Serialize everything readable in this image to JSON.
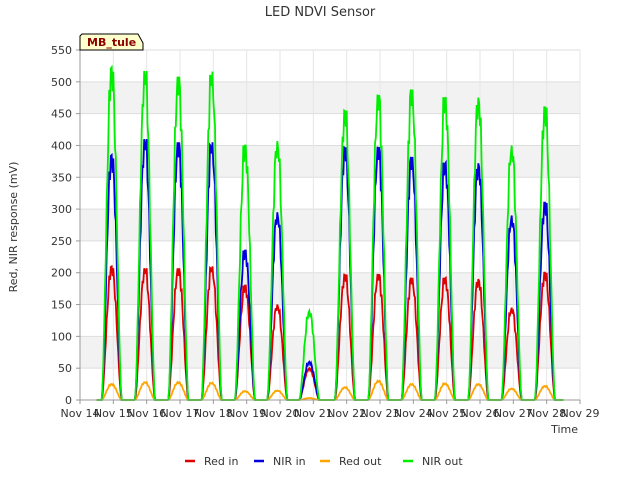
{
  "chart_data": {
    "type": "line",
    "title": "LED NDVI Sensor",
    "xlabel": "Time",
    "ylabel": "Red, NIR response (mV)",
    "badge": "MB_tule",
    "xlim": [
      14,
      29
    ],
    "ylim": [
      0,
      550
    ],
    "x_ticks": [
      {
        "value": 14,
        "label": "Nov 14"
      },
      {
        "value": 15,
        "label": "Nov 15"
      },
      {
        "value": 16,
        "label": "Nov 16"
      },
      {
        "value": 17,
        "label": "Nov 17"
      },
      {
        "value": 18,
        "label": "Nov 18"
      },
      {
        "value": 19,
        "label": "Nov 19"
      },
      {
        "value": 20,
        "label": "Nov 20"
      },
      {
        "value": 21,
        "label": "Nov 21"
      },
      {
        "value": 22,
        "label": "Nov 22"
      },
      {
        "value": 23,
        "label": "Nov 23"
      },
      {
        "value": 24,
        "label": "Nov 24"
      },
      {
        "value": 25,
        "label": "Nov 25"
      },
      {
        "value": 26,
        "label": "Nov 26"
      },
      {
        "value": 27,
        "label": "Nov 27"
      },
      {
        "value": 28,
        "label": "Nov 28"
      },
      {
        "value": 29,
        "label": "Nov 29"
      }
    ],
    "y_ticks": [
      0,
      50,
      100,
      150,
      200,
      250,
      300,
      350,
      400,
      450,
      500,
      550
    ],
    "legend_position": "bottom",
    "grid": true,
    "series": [
      {
        "name": "Red in",
        "color": "#dd0000",
        "peaks": [
          [
            14.95,
            210
          ],
          [
            15.95,
            207
          ],
          [
            16.95,
            207
          ],
          [
            17.95,
            210
          ],
          [
            18.95,
            180
          ],
          [
            19.92,
            150
          ],
          [
            20.88,
            50
          ],
          [
            21.95,
            197
          ],
          [
            22.95,
            198
          ],
          [
            23.95,
            192
          ],
          [
            24.95,
            192
          ],
          [
            25.95,
            190
          ],
          [
            26.95,
            145
          ],
          [
            27.95,
            200
          ]
        ]
      },
      {
        "name": "NIR in",
        "color": "#0000dd",
        "peaks": [
          [
            14.95,
            385
          ],
          [
            15.95,
            410
          ],
          [
            16.95,
            405
          ],
          [
            17.95,
            405
          ],
          [
            18.95,
            235
          ],
          [
            19.92,
            295
          ],
          [
            20.88,
            60
          ],
          [
            21.95,
            397
          ],
          [
            22.95,
            398
          ],
          [
            23.95,
            382
          ],
          [
            24.95,
            373
          ],
          [
            25.95,
            372
          ],
          [
            26.95,
            290
          ],
          [
            27.95,
            310
          ]
        ]
      },
      {
        "name": "Red out",
        "color": "#ffa500",
        "peaks": [
          [
            14.95,
            25
          ],
          [
            15.95,
            28
          ],
          [
            16.95,
            28
          ],
          [
            17.95,
            27
          ],
          [
            18.95,
            14
          ],
          [
            19.92,
            15
          ],
          [
            20.88,
            3
          ],
          [
            21.95,
            20
          ],
          [
            22.95,
            30
          ],
          [
            23.95,
            25
          ],
          [
            24.95,
            26
          ],
          [
            25.95,
            25
          ],
          [
            26.95,
            18
          ],
          [
            27.95,
            22
          ]
        ]
      },
      {
        "name": "NIR out",
        "color": "#00ee00",
        "peaks": [
          [
            14.95,
            523
          ],
          [
            15.95,
            517
          ],
          [
            16.95,
            508
          ],
          [
            17.95,
            516
          ],
          [
            18.95,
            400
          ],
          [
            19.92,
            407
          ],
          [
            20.88,
            140
          ],
          [
            21.95,
            455
          ],
          [
            22.95,
            480
          ],
          [
            23.95,
            488
          ],
          [
            24.95,
            476
          ],
          [
            25.95,
            475
          ],
          [
            26.95,
            400
          ],
          [
            27.95,
            460
          ]
        ]
      }
    ]
  }
}
